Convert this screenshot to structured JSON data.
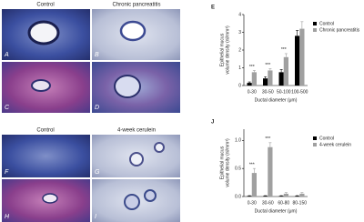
{
  "figure": {
    "top_headers": [
      "Control",
      "Chronic pancreatitis"
    ],
    "bottom_headers": [
      "Control",
      "4-week cerulein"
    ],
    "panel_labels": [
      "A",
      "B",
      "C",
      "D",
      "F",
      "G",
      "H",
      "I"
    ]
  },
  "chart_data": [
    {
      "type": "bar",
      "title": "E",
      "ylabel": [
        "Epithelial mucus",
        "volume density (nl/mm³)"
      ],
      "xlabel": "Ductal diameter (μm)",
      "categories": [
        "0-30",
        "30-50",
        "50-100",
        "100-500"
      ],
      "series": [
        {
          "name": "Control",
          "color": "#000000",
          "values": [
            0.15,
            0.4,
            0.75,
            2.8
          ],
          "errors": [
            0.05,
            0.1,
            0.15,
            0.3
          ]
        },
        {
          "name": "Chronic pancreatitis",
          "color": "#a0a0a0",
          "values": [
            0.75,
            0.85,
            1.6,
            3.2
          ],
          "errors": [
            0.1,
            0.1,
            0.2,
            0.4
          ]
        }
      ],
      "significance": [
        "***",
        "***",
        "***",
        null
      ],
      "ylim": [
        0,
        4
      ],
      "yticks": [
        0,
        1,
        2,
        3,
        4
      ]
    },
    {
      "type": "bar",
      "title": "J",
      "ylabel": [
        "Epithelial mucus",
        "volume density (nl/mm³)"
      ],
      "xlabel": "Ductal diameter (μm)",
      "categories": [
        "0-30",
        "30-60",
        "60-80",
        "80-150"
      ],
      "series": [
        {
          "name": "Control",
          "color": "#000000",
          "values": [
            0.01,
            0.01,
            0.01,
            0.01
          ],
          "errors": [
            0.005,
            0.005,
            0.005,
            0.005
          ]
        },
        {
          "name": "4-week cerulein",
          "color": "#a0a0a0",
          "values": [
            0.42,
            0.88,
            0.05,
            0.05
          ],
          "errors": [
            0.08,
            0.08,
            0.02,
            0.02
          ]
        }
      ],
      "significance": [
        "***",
        "***",
        null,
        null
      ],
      "ylim": [
        0,
        1.2
      ],
      "yticks": [
        {
          "value": 0,
          "label": "0.0"
        },
        0.5,
        {
          "value": 1,
          "label": "1.0"
        }
      ]
    }
  ]
}
